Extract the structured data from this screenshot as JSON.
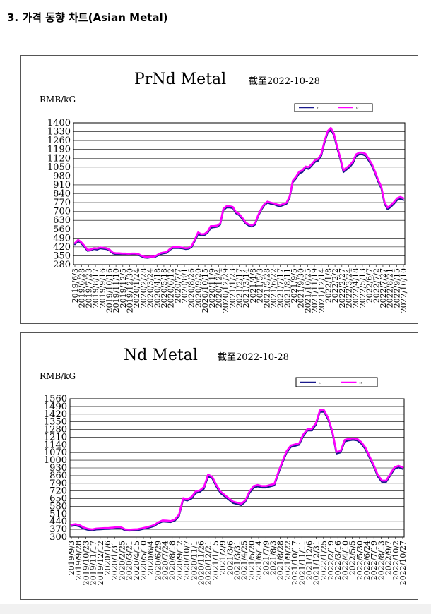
{
  "section_title": "3. 가격 동향 차트(Asian Metal)",
  "colors": {
    "L": "#1a1a8c",
    "H": "#ff00ff",
    "frame": "#555555",
    "grid": "#000000"
  },
  "chart_data": [
    {
      "type": "line",
      "title": "PrNd Metal",
      "subtitle": "截至2022-10-28",
      "ylabel": "RMB/kG",
      "legend": [
        "L",
        "H"
      ],
      "legend_position": "top-right",
      "grid": true,
      "ylim": [
        280,
        1400
      ],
      "yticks": [
        1400,
        1330,
        1260,
        1190,
        1120,
        1050,
        980,
        910,
        840,
        770,
        700,
        630,
        560,
        490,
        420,
        350,
        280
      ],
      "xticks": [
        "2019/6/3",
        "2019/6/28",
        "2019/7/23",
        "2019/8/17",
        "2019/9/16",
        "2019/10/16",
        "2019/11/10",
        "2019/12/5",
        "2019/12/30",
        "2020/1/24",
        "2020/2/28",
        "2020/3/24",
        "2020/4/18",
        "2020/5/18",
        "2020/6/12",
        "2020/7/7",
        "2020/8/1",
        "2020/8/26",
        "2020/9/20",
        "2020/10/15",
        "2020/11/9",
        "2020/12/4",
        "2020/12/29",
        "2021/1/23",
        "2021/2/17",
        "2021/3/14",
        "2021/4/8",
        "2021/5/3",
        "2021/5/28",
        "2021/6/22",
        "2021/7/17",
        "2021/8/11",
        "2021/9/5",
        "2021/9/30",
        "2021/10/25",
        "2021/11/19",
        "2021/12/14",
        "2022/1/8",
        "2022/2/2",
        "2022/2/27",
        "2022/3/24",
        "2022/4/18",
        "2022/5/13",
        "2022/6/7",
        "2022/7/2",
        "2022/7/27",
        "2022/8/21",
        "2022/9/15",
        "2022/10/10"
      ],
      "series": [
        {
          "name": "L",
          "values": [
            440,
            465,
            448,
            420,
            388,
            392,
            402,
            398,
            408,
            405,
            402,
            390,
            368,
            362,
            363,
            362,
            360,
            358,
            361,
            360,
            358,
            345,
            335,
            333,
            337,
            336,
            348,
            362,
            368,
            372,
            394,
            410,
            410,
            410,
            408,
            402,
            404,
            420,
            468,
            520,
            510,
            512,
            530,
            570,
            575,
            578,
            596,
            708,
            730,
            730,
            725,
            685,
            670,
            640,
            605,
            588,
            580,
            595,
            660,
            712,
            750,
            768,
            760,
            756,
            745,
            740,
            750,
            760,
            810,
            930,
            960,
            1000,
            1010,
            1040,
            1035,
            1062,
            1090,
            1100,
            1140,
            1240,
            1320,
            1345,
            1300,
            1200,
            1110,
            1010,
            1030,
            1050,
            1080,
            1135,
            1150,
            1150,
            1140,
            1100,
            1060,
            1000,
            935,
            880,
            760,
            715,
            735,
            760,
            790,
            800,
            790
          ]
        },
        {
          "name": "H",
          "values": [
            450,
            475,
            458,
            430,
            398,
            400,
            410,
            408,
            416,
            413,
            410,
            398,
            375,
            370,
            370,
            368,
            368,
            366,
            368,
            368,
            365,
            352,
            343,
            340,
            344,
            343,
            355,
            370,
            376,
            380,
            402,
            418,
            418,
            418,
            415,
            410,
            412,
            428,
            480,
            535,
            520,
            522,
            540,
            585,
            585,
            588,
            605,
            720,
            742,
            742,
            735,
            695,
            680,
            650,
            615,
            598,
            590,
            605,
            670,
            722,
            760,
            778,
            770,
            765,
            755,
            750,
            760,
            770,
            820,
            945,
            975,
            1015,
            1025,
            1055,
            1050,
            1075,
            1105,
            1115,
            1155,
            1255,
            1335,
            1360,
            1315,
            1215,
            1125,
            1025,
            1045,
            1065,
            1095,
            1150,
            1165,
            1165,
            1155,
            1115,
            1075,
            1015,
            950,
            895,
            775,
            730,
            750,
            775,
            805,
            815,
            805
          ]
        }
      ]
    },
    {
      "type": "line",
      "title": "Nd Metal",
      "subtitle": "截至2022-10-28",
      "ylabel": "RMB/kG",
      "legend": [
        "L",
        "H"
      ],
      "legend_position": "top-right",
      "grid": true,
      "ylim": [
        300,
        1560
      ],
      "yticks": [
        1560,
        1490,
        1420,
        1350,
        1280,
        1210,
        1140,
        1070,
        1000,
        930,
        860,
        790,
        720,
        650,
        580,
        510,
        440,
        370,
        300
      ],
      "xticks": [
        "2019/9/3",
        "2019/9/28",
        "2019/10/23",
        "2019/11/17",
        "2019/12/12",
        "2020/1/6",
        "2020/1/31",
        "2020/2/25",
        "2020/3/21",
        "2020/4/15",
        "2020/5/10",
        "2020/6/4",
        "2020/6/29",
        "2020/7/24",
        "2020/8/18",
        "2020/9/12",
        "2020/10/7",
        "2020/11/1",
        "2020/11/26",
        "2020/12/21",
        "2021/1/15",
        "2021/2/9",
        "2021/3/6",
        "2021/3/31",
        "2021/4/25",
        "2021/5/20",
        "2021/6/14",
        "2021/7/9",
        "2021/8/3",
        "2021/8/28",
        "2021/9/22",
        "2021/10/17",
        "2021/11/11",
        "2021/12/6",
        "2021/12/31",
        "2022/1/25",
        "2022/2/19",
        "2022/3/16",
        "2022/4/10",
        "2022/5/5",
        "2022/5/30",
        "2022/6/24",
        "2022/7/19",
        "2022/8/13",
        "2022/9/7",
        "2022/10/2",
        "2022/10/27"
      ],
      "series": [
        {
          "name": "L",
          "values": [
            400,
            405,
            396,
            375,
            365,
            360,
            368,
            370,
            372,
            373,
            375,
            382,
            380,
            360,
            358,
            360,
            362,
            370,
            378,
            388,
            400,
            425,
            440,
            438,
            435,
            450,
            490,
            640,
            632,
            650,
            700,
            710,
            740,
            850,
            835,
            760,
            700,
            670,
            640,
            610,
            600,
            590,
            620,
            700,
            750,
            760,
            750,
            750,
            760,
            770,
            880,
            980,
            1070,
            1120,
            1130,
            1140,
            1220,
            1270,
            1270,
            1320,
            1440,
            1440,
            1370,
            1250,
            1060,
            1070,
            1170,
            1180,
            1185,
            1180,
            1150,
            1100,
            1020,
            940,
            850,
            800,
            800,
            860,
            920,
            935,
            920
          ]
        },
        {
          "name": "H",
          "values": [
            412,
            418,
            408,
            388,
            375,
            370,
            378,
            380,
            382,
            383,
            386,
            392,
            390,
            370,
            368,
            370,
            372,
            380,
            388,
            398,
            410,
            435,
            452,
            450,
            446,
            462,
            505,
            655,
            645,
            665,
            715,
            725,
            755,
            868,
            850,
            775,
            715,
            684,
            654,
            624,
            614,
            604,
            634,
            715,
            765,
            775,
            765,
            765,
            775,
            785,
            895,
            995,
            1085,
            1135,
            1145,
            1155,
            1235,
            1285,
            1285,
            1335,
            1455,
            1455,
            1385,
            1265,
            1075,
            1085,
            1185,
            1195,
            1200,
            1195,
            1165,
            1115,
            1035,
            955,
            865,
            815,
            815,
            875,
            935,
            950,
            935
          ]
        }
      ]
    }
  ]
}
